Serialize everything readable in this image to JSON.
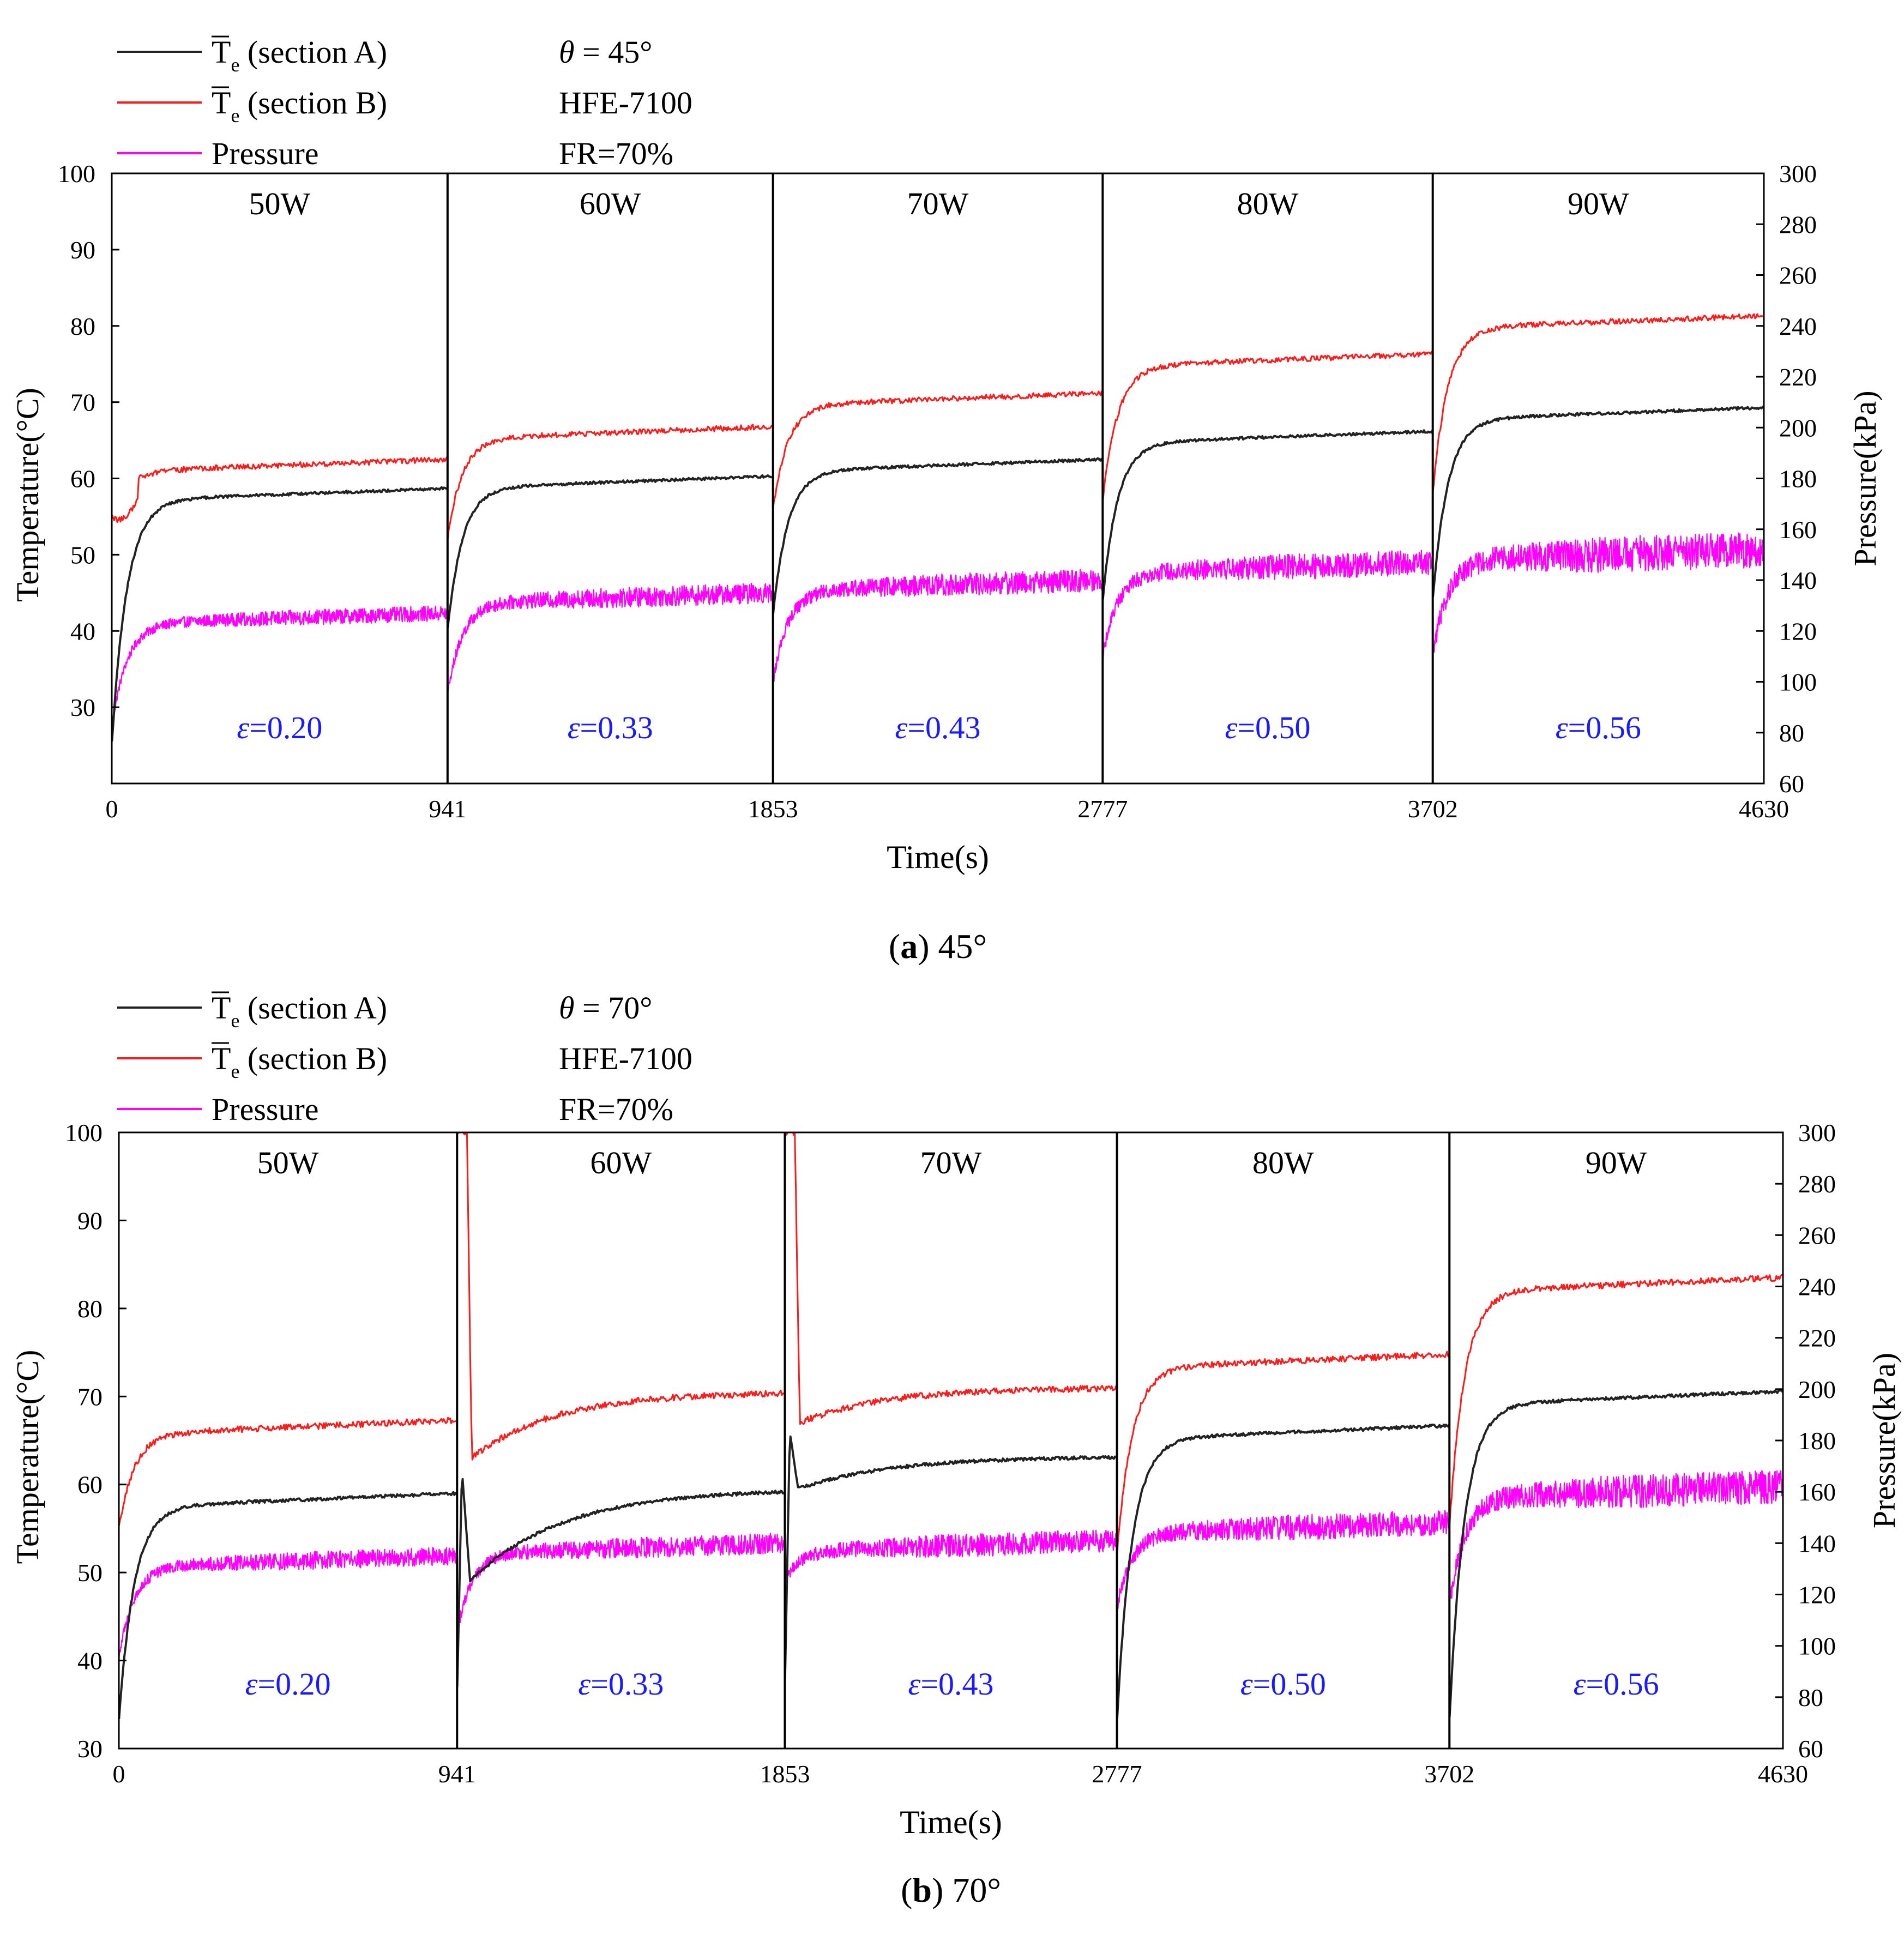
{
  "colors": {
    "section_A": "#222222",
    "section_B": "#ff1a1a",
    "pressure": "#ff00ff",
    "effectiveness": "#1a1aff",
    "axis": "#000000"
  },
  "chart_data": [
    {
      "type": "line",
      "panel_label": "a",
      "caption_text": "45°",
      "xlabel": "Time(s)",
      "ylabel_left": "Temperature(°C)",
      "ylabel_right": "Pressure(kPa)",
      "xlim": [
        0,
        4630
      ],
      "ylim_left": [
        20,
        100
      ],
      "ylim_right": [
        60,
        300
      ],
      "x_ticks": [
        "0",
        "941",
        "1853",
        "2777",
        "3702",
        "4630"
      ],
      "y_ticks_left": [
        "30",
        "40",
        "50",
        "60",
        "70",
        "80",
        "90",
        "100"
      ],
      "y_ticks_right": [
        "60",
        "80",
        "100",
        "120",
        "140",
        "160",
        "180",
        "200",
        "220",
        "240",
        "260",
        "280",
        "300"
      ],
      "legend": {
        "entries": [
          {
            "symbol": "T",
            "subscript": "e",
            "label": "(section A)",
            "series": "section_A"
          },
          {
            "symbol": "T",
            "subscript": "e",
            "label": "(section B)",
            "series": "section_B"
          },
          {
            "symbol": "",
            "subscript": "",
            "label": "Pressure",
            "series": "pressure"
          }
        ],
        "info": [
          "= 45°",
          "HFE-7100",
          "FR=70%"
        ],
        "theta_symbol": "θ"
      },
      "segments": [
        {
          "power": "50W",
          "t_start": 0,
          "t_end": 941,
          "epsilon": "=0.20",
          "epsilon_symbol": "ε",
          "A": {
            "start": 25,
            "end": 58.7,
            "spike": null
          },
          "B": {
            "start": 55,
            "dip": 52.5,
            "end": 62.5,
            "spike": null
          },
          "P": {
            "start": 82,
            "end": 127,
            "noise": 3
          }
        },
        {
          "power": "60W",
          "t_start": 941,
          "t_end": 1853,
          "epsilon": "=0.33",
          "epsilon_symbol": "ε",
          "A": {
            "start": 40,
            "end": 60.3,
            "spike": null
          },
          "B": {
            "start": 52,
            "dip": null,
            "end": 66.8,
            "spike": null
          },
          "P": {
            "start": 95,
            "end": 135,
            "noise": 4
          }
        },
        {
          "power": "70W",
          "t_start": 1853,
          "t_end": 2777,
          "epsilon": "=0.43",
          "epsilon_symbol": "ε",
          "A": {
            "start": 42,
            "end": 62.5,
            "spike": null
          },
          "B": {
            "start": 56,
            "dip": null,
            "end": 71.2,
            "spike": null
          },
          "P": {
            "start": 100,
            "end": 140,
            "noise": 4.5
          }
        },
        {
          "power": "80W",
          "t_start": 2777,
          "t_end": 3702,
          "epsilon": "=0.50",
          "epsilon_symbol": "ε",
          "A": {
            "start": 44,
            "end": 66.2,
            "spike": null
          },
          "B": {
            "start": 57,
            "dip": null,
            "end": 76.3,
            "spike": null
          },
          "P": {
            "start": 110,
            "end": 147,
            "noise": 5
          }
        },
        {
          "power": "90W",
          "t_start": 3702,
          "t_end": 4630,
          "epsilon": "=0.56",
          "epsilon_symbol": "ε",
          "A": {
            "start": 44,
            "end": 69.3,
            "spike": null
          },
          "B": {
            "start": 58,
            "dip": null,
            "end": 81.3,
            "spike": null
          },
          "P": {
            "start": 110,
            "end": 152,
            "noise": 7
          }
        }
      ]
    },
    {
      "type": "line",
      "panel_label": "b",
      "caption_text": "70°",
      "xlabel": "Time(s)",
      "ylabel_left": "Temperature(°C)",
      "ylabel_right": "Pressure(kPa)",
      "xlim": [
        0,
        4630
      ],
      "ylim_left": [
        30,
        100
      ],
      "ylim_right": [
        60,
        300
      ],
      "x_ticks": [
        "0",
        "941",
        "1853",
        "2777",
        "3702",
        "4630"
      ],
      "y_ticks_left": [
        "30",
        "40",
        "50",
        "60",
        "70",
        "80",
        "90",
        "100"
      ],
      "y_ticks_right": [
        "60",
        "80",
        "100",
        "120",
        "140",
        "160",
        "180",
        "200",
        "220",
        "240",
        "260",
        "280",
        "300"
      ],
      "legend": {
        "entries": [
          {
            "symbol": "T",
            "subscript": "e",
            "label": "(section A)",
            "series": "section_A"
          },
          {
            "symbol": "T",
            "subscript": "e",
            "label": "(section B)",
            "series": "section_B"
          },
          {
            "symbol": "",
            "subscript": "",
            "label": "Pressure",
            "series": "pressure"
          }
        ],
        "info": [
          "= 70°",
          "HFE-7100",
          "FR=70%"
        ],
        "theta_symbol": "θ"
      },
      "segments": [
        {
          "power": "50W",
          "t_start": 0,
          "t_end": 941,
          "epsilon": "=0.20",
          "epsilon_symbol": "ε",
          "A": {
            "start": 33,
            "end": 59,
            "spike": null
          },
          "B": {
            "start": 55,
            "dip": null,
            "end": 67.3,
            "spike": null
          },
          "P": {
            "start": 95,
            "end": 135,
            "noise": 3.5
          }
        },
        {
          "power": "60W",
          "t_start": 941,
          "t_end": 1853,
          "epsilon": "=0.33",
          "epsilon_symbol": "ε",
          "A": {
            "start": 36,
            "end": 59.5,
            "spike": 61.5,
            "dip": 49
          },
          "B": {
            "start": 63,
            "dip": null,
            "end": 70.5,
            "spike": 100
          },
          "P": {
            "start": 105,
            "end": 140,
            "noise": 4
          }
        },
        {
          "power": "70W",
          "t_start": 1853,
          "t_end": 2777,
          "epsilon": "=0.43",
          "epsilon_symbol": "ε",
          "A": {
            "start": 37,
            "end": 63.2,
            "spike": 66,
            "dip": 59.5
          },
          "B": {
            "start": 67,
            "dip": null,
            "end": 71,
            "spike": 100
          },
          "P": {
            "start": 125,
            "end": 141,
            "noise": 4.5
          }
        },
        {
          "power": "80W",
          "t_start": 2777,
          "t_end": 3702,
          "epsilon": "=0.50",
          "epsilon_symbol": "ε",
          "A": {
            "start": 33,
            "end": 66.7,
            "spike": null
          },
          "B": {
            "start": 52,
            "dip": null,
            "end": 74.8,
            "spike": null
          },
          "P": {
            "start": 115,
            "end": 148,
            "noise": 5
          }
        },
        {
          "power": "90W",
          "t_start": 3702,
          "t_end": 4630,
          "epsilon": "=0.56",
          "epsilon_symbol": "ε",
          "A": {
            "start": 33,
            "end": 70.6,
            "spike": null
          },
          "B": {
            "start": 55,
            "dip": null,
            "end": 83.5,
            "spike": null
          },
          "P": {
            "start": 115,
            "end": 162,
            "noise": 6.5
          }
        }
      ]
    }
  ]
}
